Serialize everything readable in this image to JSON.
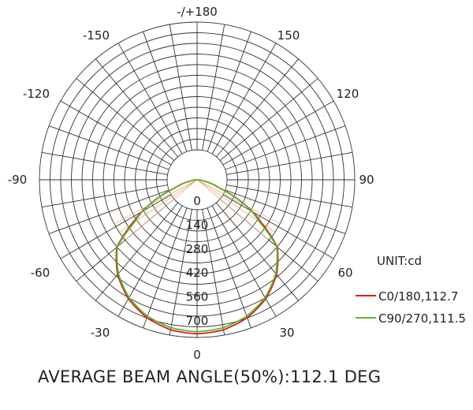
{
  "chart_data": {
    "type": "polar",
    "unit_label": "UNIT:cd",
    "angle_labels": [
      "-/+180",
      "150",
      "120",
      "90",
      "60",
      "30",
      "0",
      "-30",
      "-60",
      "-90",
      "-120",
      "-150"
    ],
    "radial_labels": [
      "0",
      "140",
      "280",
      "420",
      "560",
      "700"
    ],
    "radial_range": [
      0,
      700
    ],
    "grid": true,
    "angle_spokes_deg_step": 10,
    "legend_position": "bottom-right",
    "series": [
      {
        "name": "C0/180,112.7",
        "color": "#d42020",
        "angles": [
          0,
          10,
          20,
          30,
          40,
          50,
          56.35,
          60,
          70,
          80,
          90
        ],
        "values": [
          720,
          712,
          686,
          642,
          578,
          490,
          360,
          300,
          110,
          30,
          0
        ]
      },
      {
        "name": "C90/270,111.5",
        "color": "#5cb82b",
        "angles": [
          0,
          10,
          20,
          30,
          40,
          50,
          55.75,
          60,
          70,
          80,
          90
        ],
        "values": [
          710,
          702,
          678,
          636,
          572,
          486,
          355,
          295,
          105,
          28,
          0
        ]
      }
    ],
    "footer": "AVERAGE BEAM ANGLE(50%):112.1 DEG"
  }
}
